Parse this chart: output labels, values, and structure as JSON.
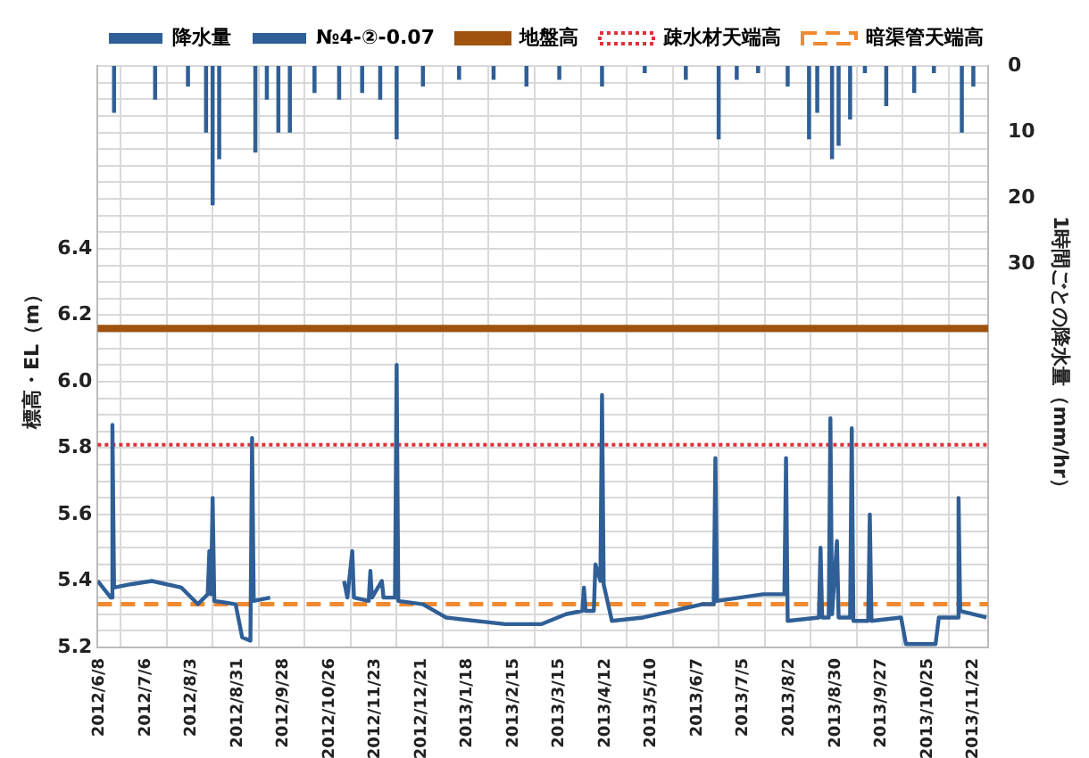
{
  "chart_data": {
    "type": "line",
    "ylabel": "標高・EL（m）",
    "y2label": "1時間ごとの降水量（mm/hr）",
    "legend": "top",
    "grid": true,
    "marker": "none",
    "xlim": [
      "2012-06-08",
      "2013-12-02"
    ],
    "xticks": [
      {
        "value": "2012-06-08",
        "label": "2012/6/8"
      },
      {
        "value": "2012-07-06",
        "label": "2012/7/6"
      },
      {
        "value": "2012-08-03",
        "label": "2012/8/3"
      },
      {
        "value": "2012-08-31",
        "label": "2012/8/31"
      },
      {
        "value": "2012-09-28",
        "label": "2012/9/28"
      },
      {
        "value": "2012-10-26",
        "label": "2012/10/26"
      },
      {
        "value": "2012-11-23",
        "label": "2012/11/23"
      },
      {
        "value": "2012-12-21",
        "label": "2012/12/21"
      },
      {
        "value": "2013-01-18",
        "label": "2013/1/18"
      },
      {
        "value": "2013-02-15",
        "label": "2013/2/15"
      },
      {
        "value": "2013-03-15",
        "label": "2013/3/15"
      },
      {
        "value": "2013-04-12",
        "label": "2013/4/12"
      },
      {
        "value": "2013-05-10",
        "label": "2013/5/10"
      },
      {
        "value": "2013-06-07",
        "label": "2013/6/7"
      },
      {
        "value": "2013-07-05",
        "label": "2013/7/5"
      },
      {
        "value": "2013-08-02",
        "label": "2013/8/2"
      },
      {
        "value": "2013-08-30",
        "label": "2013/8/30"
      },
      {
        "value": "2013-09-27",
        "label": "2013/9/27"
      },
      {
        "value": "2013-10-25",
        "label": "2013/10/25"
      },
      {
        "value": "2013-11-22",
        "label": "2013/11/22"
      }
    ],
    "ylim": [
      5.2,
      6.95
    ],
    "yticks": [
      {
        "value": 5.2,
        "label": "5.2"
      },
      {
        "value": 5.25,
        "label": null
      },
      {
        "value": 5.3,
        "label": null
      },
      {
        "value": 5.35,
        "label": null
      },
      {
        "value": 5.4,
        "label": "5.4"
      },
      {
        "value": 5.45,
        "label": null
      },
      {
        "value": 5.5,
        "label": null
      },
      {
        "value": 5.55,
        "label": null
      },
      {
        "value": 5.6,
        "label": "5.6"
      },
      {
        "value": 5.65,
        "label": null
      },
      {
        "value": 5.7,
        "label": null
      },
      {
        "value": 5.75,
        "label": null
      },
      {
        "value": 5.8,
        "label": "5.8"
      },
      {
        "value": 5.85,
        "label": null
      },
      {
        "value": 5.9,
        "label": null
      },
      {
        "value": 5.95,
        "label": null
      },
      {
        "value": 6.0,
        "label": "6.0"
      },
      {
        "value": 6.05,
        "label": null
      },
      {
        "value": 6.1,
        "label": null
      },
      {
        "value": 6.15,
        "label": null
      },
      {
        "value": 6.2,
        "label": "6.2"
      },
      {
        "value": 6.25,
        "label": null
      },
      {
        "value": 6.3,
        "label": null
      },
      {
        "value": 6.35,
        "label": null
      },
      {
        "value": 6.4,
        "label": "6.4"
      },
      {
        "value": 6.45,
        "label": null
      },
      {
        "value": 6.5,
        "label": null
      },
      {
        "value": 6.55,
        "label": null
      },
      {
        "value": 6.6,
        "label": null
      },
      {
        "value": 6.65,
        "label": null
      },
      {
        "value": 6.7,
        "label": null
      },
      {
        "value": 6.75,
        "label": null
      },
      {
        "value": 6.8,
        "label": null
      },
      {
        "value": 6.85,
        "label": null
      },
      {
        "value": 6.9,
        "label": null
      },
      {
        "value": 6.95,
        "label": null
      }
    ],
    "y2lim": [
      88,
      0
    ],
    "y2ticks": [
      0,
      10,
      20,
      30
    ],
    "series": [
      {
        "name": "降水量",
        "type": "bar",
        "axis": "y2",
        "color": "#2f5f96",
        "x": [
          "2012-06-18",
          "2012-07-13",
          "2012-08-02",
          "2012-08-13",
          "2012-08-17",
          "2012-08-21",
          "2012-09-12",
          "2012-09-19",
          "2012-09-26",
          "2012-10-03",
          "2012-10-18",
          "2012-11-02",
          "2012-11-16",
          "2012-11-27",
          "2012-12-07",
          "2012-12-23",
          "2013-01-14",
          "2013-02-04",
          "2013-02-24",
          "2013-03-16",
          "2013-04-11",
          "2013-05-07",
          "2013-06-01",
          "2013-06-21",
          "2013-07-02",
          "2013-07-15",
          "2013-08-02",
          "2013-08-15",
          "2013-08-20",
          "2013-08-29",
          "2013-09-02",
          "2013-09-09",
          "2013-09-18",
          "2013-10-01",
          "2013-10-18",
          "2013-10-30",
          "2013-11-16",
          "2013-11-23"
        ],
        "values": [
          7,
          5,
          3,
          10,
          21,
          14,
          13,
          5,
          10,
          10,
          4,
          5,
          4,
          5,
          11,
          3,
          2,
          2,
          3,
          2,
          3,
          1,
          2,
          11,
          2,
          1,
          3,
          11,
          7,
          14,
          12,
          8,
          1,
          6,
          4,
          1,
          10,
          3
        ]
      },
      {
        "name": "№4-②-0.07",
        "color": "#2f5f96",
        "x": [
          "2012-06-08",
          "2012-06-16",
          "2012-06-17",
          "2012-06-18",
          "2012-06-28",
          "2012-07-11",
          "2012-07-29",
          "2012-08-08",
          "2012-08-14",
          "2012-08-15",
          "2012-08-16",
          "2012-08-17",
          "2012-08-18",
          "2012-08-31",
          "2012-09-04",
          "2012-09-09",
          "2012-09-10",
          "2012-09-11",
          "2012-09-21",
          "2012-10-15",
          "2012-11-05",
          "2012-11-07",
          "2012-11-10",
          "2012-11-11",
          "2012-11-20",
          "2012-11-21",
          "2012-11-22",
          "2012-11-28",
          "2012-11-29",
          "2012-12-06",
          "2012-12-07",
          "2012-12-08",
          "2012-12-23",
          "2013-01-06",
          "2013-02-11",
          "2013-03-05",
          "2013-03-20",
          "2013-03-30",
          "2013-03-31",
          "2013-04-01",
          "2013-04-06",
          "2013-04-07",
          "2013-04-10",
          "2013-04-11",
          "2013-04-12",
          "2013-04-17",
          "2013-05-06",
          "2013-06-11",
          "2013-06-18",
          "2013-06-19",
          "2013-06-20",
          "2013-07-18",
          "2013-07-31",
          "2013-08-01",
          "2013-08-02",
          "2013-08-21",
          "2013-08-22",
          "2013-08-23",
          "2013-08-27",
          "2013-08-28",
          "2013-08-29",
          "2013-09-01",
          "2013-09-02",
          "2013-09-09",
          "2013-09-10",
          "2013-09-11",
          "2013-09-20",
          "2013-09-21",
          "2013-09-22",
          "2013-10-10",
          "2013-10-13",
          "2013-10-31",
          "2013-11-02",
          "2013-11-13",
          "2013-11-14",
          "2013-11-15",
          "2013-12-01"
        ],
        "values": [
          5.4,
          5.35,
          5.87,
          5.38,
          5.39,
          5.4,
          5.38,
          5.33,
          5.36,
          5.49,
          5.36,
          5.65,
          5.34,
          5.33,
          5.23,
          5.22,
          5.83,
          5.34,
          5.35,
          null,
          5.4,
          5.35,
          5.49,
          5.35,
          5.34,
          5.43,
          5.35,
          5.4,
          5.35,
          5.35,
          6.05,
          5.34,
          5.33,
          5.29,
          5.27,
          5.27,
          5.3,
          5.31,
          5.38,
          5.31,
          5.31,
          5.45,
          5.4,
          5.96,
          5.39,
          5.28,
          5.29,
          5.33,
          5.33,
          5.77,
          5.34,
          5.36,
          5.36,
          5.77,
          5.28,
          5.29,
          5.5,
          5.29,
          5.29,
          5.89,
          5.3,
          5.52,
          5.29,
          5.29,
          5.86,
          5.28,
          5.28,
          5.6,
          5.28,
          5.29,
          5.21,
          5.21,
          5.29,
          5.29,
          5.65,
          5.31,
          5.29
        ]
      }
    ],
    "ref_lines": [
      {
        "axis": "y",
        "value": 6.16,
        "label": "地盤高",
        "color": "#a0520f",
        "line_style": "solid"
      },
      {
        "axis": "y",
        "value": 5.81,
        "label": "疎水材天端高",
        "color": "#e0303a",
        "line_style": "dotted"
      },
      {
        "axis": "y",
        "value": 5.33,
        "label": "暗渠管天端高",
        "color": "#f08a30",
        "line_style": "dashed"
      }
    ]
  }
}
